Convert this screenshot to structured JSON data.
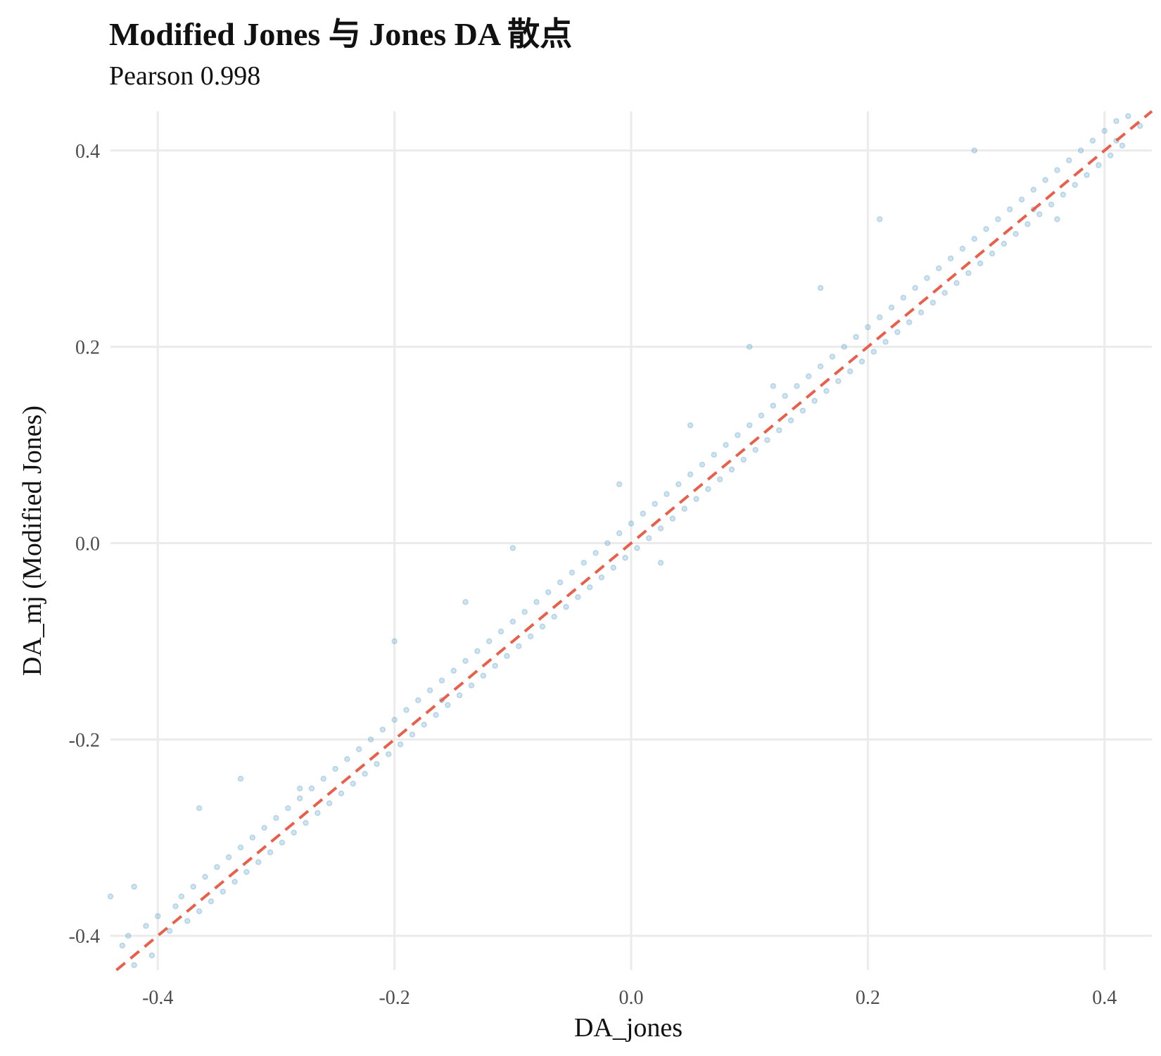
{
  "chart_data": {
    "type": "scatter",
    "title": "Modified Jones 与 Jones DA 散点",
    "subtitle": "Pearson 0.998",
    "xlabel": "DA_jones",
    "ylabel": "DA_mj (Modified Jones)",
    "xlim": [
      -0.44,
      0.44
    ],
    "ylim": [
      -0.435,
      0.44
    ],
    "x_ticks": [
      -0.4,
      -0.2,
      0.0,
      0.2,
      0.4
    ],
    "x_tick_labels": [
      "-0.4",
      "-0.2",
      "0.0",
      "0.2",
      "0.4"
    ],
    "y_ticks": [
      -0.4,
      -0.2,
      0.0,
      0.2,
      0.4
    ],
    "y_tick_labels": [
      "-0.4",
      "-0.2",
      "0.0",
      "0.2",
      "0.4"
    ],
    "grid": true,
    "legend": "none",
    "point_color": "#4393c3",
    "point_alpha": 0.3,
    "reference_line": {
      "type": "y = x",
      "style": "dashed",
      "color": "#e8604c"
    },
    "series": [
      {
        "values": [
          [
            -0.43,
            -0.41
          ],
          [
            -0.425,
            -0.4
          ],
          [
            -0.42,
            -0.43
          ],
          [
            -0.41,
            -0.39
          ],
          [
            -0.405,
            -0.42
          ],
          [
            -0.4,
            -0.38
          ],
          [
            -0.39,
            -0.395
          ],
          [
            -0.385,
            -0.37
          ],
          [
            -0.38,
            -0.36
          ],
          [
            -0.375,
            -0.385
          ],
          [
            -0.37,
            -0.35
          ],
          [
            -0.365,
            -0.375
          ],
          [
            -0.36,
            -0.34
          ],
          [
            -0.355,
            -0.365
          ],
          [
            -0.35,
            -0.33
          ],
          [
            -0.345,
            -0.355
          ],
          [
            -0.34,
            -0.32
          ],
          [
            -0.335,
            -0.345
          ],
          [
            -0.33,
            -0.31
          ],
          [
            -0.325,
            -0.335
          ],
          [
            -0.32,
            -0.3
          ],
          [
            -0.315,
            -0.325
          ],
          [
            -0.31,
            -0.29
          ],
          [
            -0.305,
            -0.315
          ],
          [
            -0.3,
            -0.28
          ],
          [
            -0.295,
            -0.305
          ],
          [
            -0.29,
            -0.27
          ],
          [
            -0.285,
            -0.295
          ],
          [
            -0.28,
            -0.26
          ],
          [
            -0.275,
            -0.285
          ],
          [
            -0.27,
            -0.25
          ],
          [
            -0.265,
            -0.275
          ],
          [
            -0.26,
            -0.24
          ],
          [
            -0.255,
            -0.265
          ],
          [
            -0.25,
            -0.23
          ],
          [
            -0.245,
            -0.255
          ],
          [
            -0.24,
            -0.22
          ],
          [
            -0.235,
            -0.245
          ],
          [
            -0.23,
            -0.21
          ],
          [
            -0.225,
            -0.235
          ],
          [
            -0.22,
            -0.2
          ],
          [
            -0.215,
            -0.225
          ],
          [
            -0.21,
            -0.19
          ],
          [
            -0.205,
            -0.215
          ],
          [
            -0.2,
            -0.18
          ],
          [
            -0.195,
            -0.205
          ],
          [
            -0.19,
            -0.17
          ],
          [
            -0.185,
            -0.195
          ],
          [
            -0.18,
            -0.16
          ],
          [
            -0.175,
            -0.185
          ],
          [
            -0.17,
            -0.15
          ],
          [
            -0.165,
            -0.175
          ],
          [
            -0.16,
            -0.14
          ],
          [
            -0.155,
            -0.165
          ],
          [
            -0.15,
            -0.13
          ],
          [
            -0.145,
            -0.155
          ],
          [
            -0.14,
            -0.12
          ],
          [
            -0.135,
            -0.145
          ],
          [
            -0.13,
            -0.11
          ],
          [
            -0.125,
            -0.135
          ],
          [
            -0.12,
            -0.1
          ],
          [
            -0.115,
            -0.125
          ],
          [
            -0.11,
            -0.09
          ],
          [
            -0.105,
            -0.115
          ],
          [
            -0.1,
            -0.08
          ],
          [
            -0.095,
            -0.105
          ],
          [
            -0.09,
            -0.07
          ],
          [
            -0.085,
            -0.095
          ],
          [
            -0.08,
            -0.06
          ],
          [
            -0.075,
            -0.085
          ],
          [
            -0.07,
            -0.05
          ],
          [
            -0.065,
            -0.075
          ],
          [
            -0.06,
            -0.04
          ],
          [
            -0.055,
            -0.065
          ],
          [
            -0.05,
            -0.03
          ],
          [
            -0.045,
            -0.055
          ],
          [
            -0.04,
            -0.02
          ],
          [
            -0.035,
            -0.045
          ],
          [
            -0.03,
            -0.01
          ],
          [
            -0.025,
            -0.035
          ],
          [
            -0.02,
            0.0
          ],
          [
            -0.015,
            -0.025
          ],
          [
            -0.01,
            0.01
          ],
          [
            -0.005,
            -0.015
          ],
          [
            0.0,
            0.02
          ],
          [
            0.005,
            -0.005
          ],
          [
            0.01,
            0.03
          ],
          [
            0.015,
            0.005
          ],
          [
            0.02,
            0.04
          ],
          [
            0.025,
            0.015
          ],
          [
            0.03,
            0.05
          ],
          [
            0.035,
            0.025
          ],
          [
            0.04,
            0.06
          ],
          [
            0.045,
            0.035
          ],
          [
            0.05,
            0.07
          ],
          [
            0.055,
            0.045
          ],
          [
            0.06,
            0.08
          ],
          [
            0.065,
            0.055
          ],
          [
            0.07,
            0.09
          ],
          [
            0.075,
            0.065
          ],
          [
            0.08,
            0.1
          ],
          [
            0.085,
            0.075
          ],
          [
            0.09,
            0.11
          ],
          [
            0.095,
            0.085
          ],
          [
            0.1,
            0.12
          ],
          [
            0.105,
            0.095
          ],
          [
            0.11,
            0.13
          ],
          [
            0.115,
            0.105
          ],
          [
            0.12,
            0.14
          ],
          [
            0.125,
            0.115
          ],
          [
            0.13,
            0.15
          ],
          [
            0.135,
            0.125
          ],
          [
            0.14,
            0.16
          ],
          [
            0.145,
            0.135
          ],
          [
            0.15,
            0.17
          ],
          [
            0.155,
            0.145
          ],
          [
            0.16,
            0.18
          ],
          [
            0.165,
            0.155
          ],
          [
            0.17,
            0.19
          ],
          [
            0.175,
            0.165
          ],
          [
            0.18,
            0.2
          ],
          [
            0.185,
            0.175
          ],
          [
            0.19,
            0.21
          ],
          [
            0.195,
            0.185
          ],
          [
            0.2,
            0.22
          ],
          [
            0.205,
            0.195
          ],
          [
            0.21,
            0.23
          ],
          [
            0.215,
            0.205
          ],
          [
            0.22,
            0.24
          ],
          [
            0.225,
            0.215
          ],
          [
            0.23,
            0.25
          ],
          [
            0.235,
            0.225
          ],
          [
            0.24,
            0.26
          ],
          [
            0.245,
            0.235
          ],
          [
            0.25,
            0.27
          ],
          [
            0.255,
            0.245
          ],
          [
            0.26,
            0.28
          ],
          [
            0.265,
            0.255
          ],
          [
            0.27,
            0.29
          ],
          [
            0.275,
            0.265
          ],
          [
            0.28,
            0.3
          ],
          [
            0.285,
            0.275
          ],
          [
            0.29,
            0.31
          ],
          [
            0.295,
            0.285
          ],
          [
            0.3,
            0.32
          ],
          [
            0.305,
            0.295
          ],
          [
            0.31,
            0.33
          ],
          [
            0.315,
            0.305
          ],
          [
            0.32,
            0.34
          ],
          [
            0.325,
            0.315
          ],
          [
            0.33,
            0.35
          ],
          [
            0.335,
            0.325
          ],
          [
            0.34,
            0.36
          ],
          [
            0.345,
            0.335
          ],
          [
            0.35,
            0.37
          ],
          [
            0.355,
            0.345
          ],
          [
            0.36,
            0.38
          ],
          [
            0.365,
            0.355
          ],
          [
            0.37,
            0.39
          ],
          [
            0.375,
            0.365
          ],
          [
            0.38,
            0.4
          ],
          [
            0.385,
            0.375
          ],
          [
            0.39,
            0.41
          ],
          [
            0.395,
            0.385
          ],
          [
            0.4,
            0.42
          ],
          [
            0.405,
            0.395
          ],
          [
            0.41,
            0.43
          ],
          [
            0.415,
            0.405
          ],
          [
            0.42,
            0.435
          ],
          [
            0.43,
            0.425
          ],
          [
            -0.44,
            -0.36
          ],
          [
            -0.42,
            -0.35
          ],
          [
            -0.365,
            -0.27
          ],
          [
            -0.33,
            -0.24
          ],
          [
            -0.14,
            -0.06
          ],
          [
            -0.2,
            -0.1
          ],
          [
            -0.1,
            -0.005
          ],
          [
            0.05,
            0.12
          ],
          [
            0.12,
            0.16
          ],
          [
            0.21,
            0.33
          ],
          [
            0.16,
            0.26
          ],
          [
            0.29,
            0.4
          ],
          [
            0.34,
            0.34
          ],
          [
            -0.01,
            0.06
          ],
          [
            0.025,
            -0.02
          ],
          [
            -0.28,
            -0.25
          ],
          [
            0.36,
            0.33
          ],
          [
            0.1,
            0.2
          ],
          [
            -0.16,
            -0.16
          ],
          [
            0.41,
            0.41
          ]
        ]
      }
    ]
  }
}
